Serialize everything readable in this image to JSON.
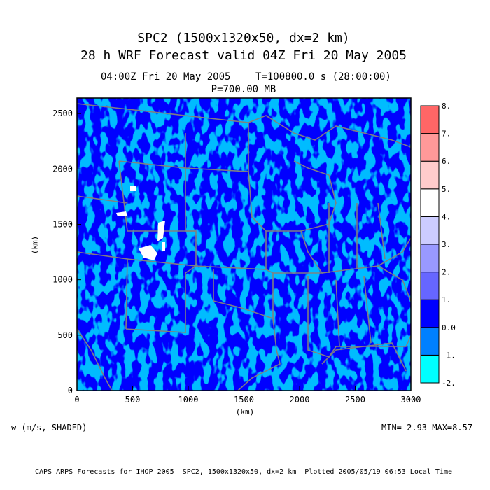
{
  "titles": {
    "line1": "SPC2 (1500x1320x50, dx=2 km)",
    "line2": "28 h WRF Forecast valid 04Z Fri 20 May 2005",
    "time": "04:00Z Fri 20 May 2005",
    "seconds": "T=100800.0 s (28:00:00)",
    "level": "P=700.00 MB"
  },
  "field_label": "w (m/s, SHADED)",
  "minmax": "MIN=-2.93 MAX=8.57",
  "footer": "CAPS ARPS Forecasts for IHOP 2005  SPC2, 1500x1320x50, dx=2 km  Plotted 2005/05/19 06:53 Local Time",
  "chart_data": {
    "type": "heatmap",
    "xlabel": "(km)",
    "ylabel": "(km)",
    "xlim": [
      0,
      3000
    ],
    "ylim": [
      0,
      2640
    ],
    "xticks": [
      "0",
      "500",
      "1000",
      "1500",
      "2000",
      "2500",
      "3000"
    ],
    "yticks": [
      "0",
      "500",
      "1000",
      "1500",
      "2000",
      "2500"
    ],
    "colorbar": {
      "levels": [
        "-2.",
        "-1.",
        "0.0",
        "1.",
        "2.",
        "3.",
        "4.",
        "5.",
        "6.",
        "7.",
        "8."
      ],
      "colors": [
        "#00ffff",
        "#0080ff",
        "#0000ff",
        "#6666ff",
        "#9999ff",
        "#ccccff",
        "#ffffff",
        "#ffcccc",
        "#ff9999",
        "#ff6666"
      ]
    },
    "dominant_colors": [
      "#0000ff",
      "#0080ff"
    ],
    "map_line_color": "#808080"
  }
}
